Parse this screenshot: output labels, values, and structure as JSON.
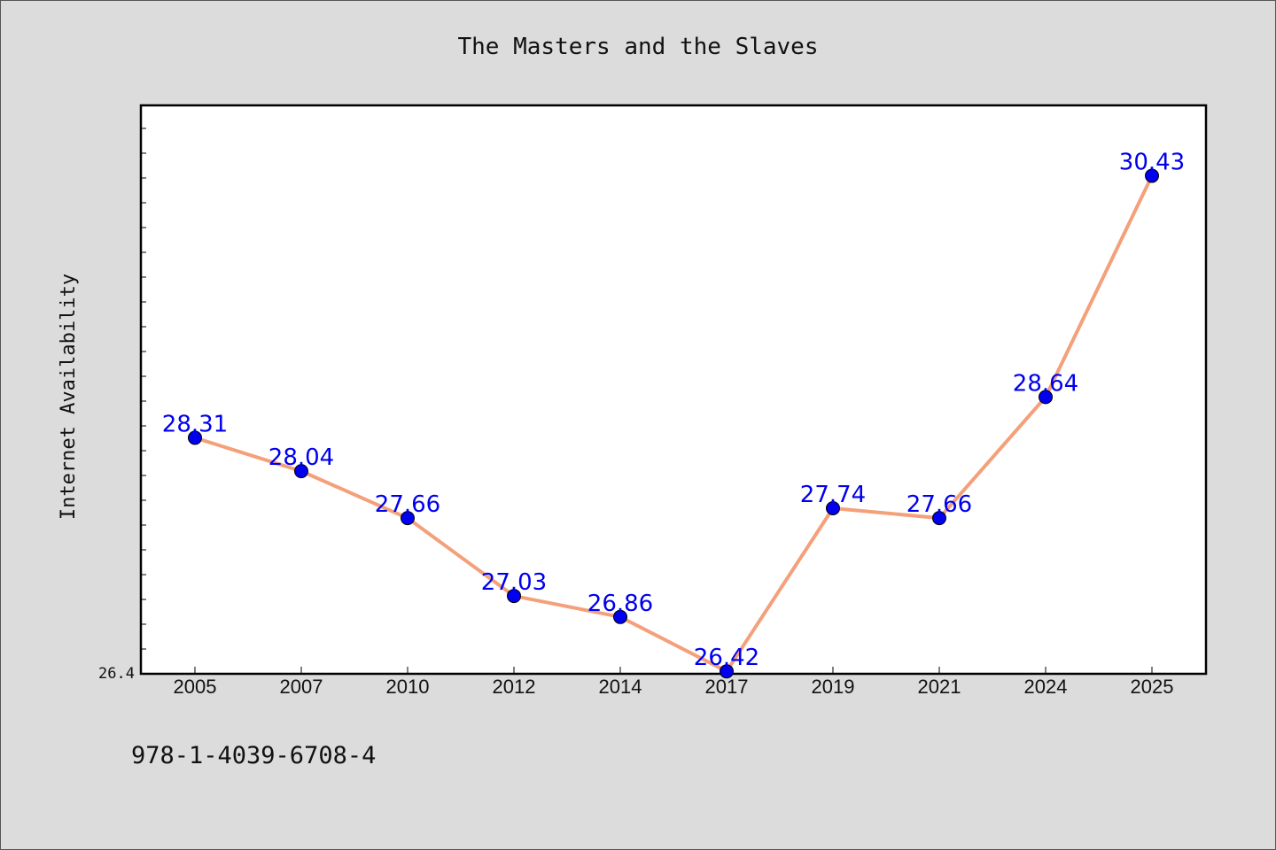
{
  "chart_data": {
    "type": "line",
    "title": "The Masters and the Slaves",
    "xlabel": "",
    "ylabel": "Internet Availability",
    "categories": [
      "2005",
      "2007",
      "2010",
      "2012",
      "2014",
      "2017",
      "2019",
      "2021",
      "2024",
      "2025"
    ],
    "series": [
      {
        "values": [
          28.31,
          28.04,
          27.66,
          27.03,
          26.86,
          26.42,
          27.74,
          27.66,
          28.64,
          30.43
        ]
      }
    ],
    "value_labels": [
      "28.31",
      "28.04",
      "27.66",
      "27.03",
      "26.86",
      "26.42",
      "27.74",
      "27.66",
      "28.64",
      "30.43"
    ],
    "ylim": [
      26.4,
      31.0
    ],
    "ytick_labels": [
      "26.4"
    ],
    "grid": false,
    "legend": "none",
    "colors": {
      "line": "#f4a07a",
      "marker": "#0000ee",
      "label": "#0000ee",
      "plot_bg": "#ffffff",
      "page_bg": "#dcdcdc"
    }
  },
  "footer_note": "978-1-4039-6708-4"
}
